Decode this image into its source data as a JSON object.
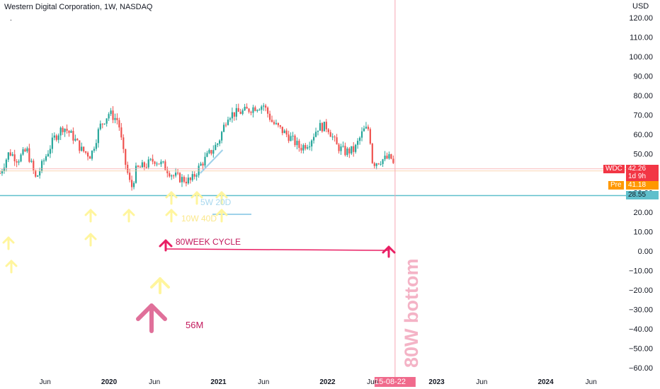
{
  "header": {
    "title": "Western Digital Corporation, 1W, NASDAQ",
    "dot": ".",
    "currency": "USD"
  },
  "badges": {
    "wdc_label": "WDC",
    "wdc_price": "42.26",
    "wdc_countdown": "1d 9h",
    "pre_label": "Pre",
    "pre_price": "41.18",
    "level_price": "28.55",
    "crosshair_date": "15-08-22"
  },
  "annotations": {
    "ma_short": "5W 20D",
    "ma_long": "10W 40D",
    "cycle": "80WEEK CYCLE",
    "monthly": "56M",
    "bottom": "80W bottom"
  },
  "colors": {
    "up": "#26a69a",
    "down": "#ef5350",
    "arrow_yellow": "#fff59d",
    "cycle_red": "#e91e63",
    "arrow_pink": "#e0709a",
    "level_teal": "#5fbfcc",
    "ma_blue": "#9fd2ea",
    "crosshair": "#f7a7b3",
    "pre": "#ff9800",
    "wdc": "#f23645"
  },
  "chart_data": {
    "type": "candlestick",
    "symbol": "WDC",
    "interval": "1W",
    "exchange": "NASDAQ",
    "y_axis": {
      "range": [
        -60,
        120
      ],
      "ticks": [
        120,
        110,
        100,
        90,
        80,
        70,
        60,
        50,
        40,
        30,
        20,
        10,
        0,
        -10,
        -20,
        -30,
        -40,
        -50,
        -60
      ],
      "tick_labels": [
        "120.00",
        "110.00",
        "100.00",
        "90.00",
        "80.00",
        "70.00",
        "60.00",
        "50.00",
        "40.00",
        "30.00",
        "20.00",
        "10.00",
        "0.00",
        "−10.00",
        "−20.00",
        "−30.00",
        "−40.00",
        "−50.00",
        "−60.00"
      ]
    },
    "x_axis": {
      "labels": [
        "Jun",
        "2020",
        "Jun",
        "2021",
        "Jun",
        "2022",
        "Jun",
        "2023",
        "Jun",
        "2024",
        "Jun"
      ],
      "dates": [
        "2019-06",
        "2020-01",
        "2020-06",
        "2021-01",
        "2021-06",
        "2022-01",
        "2022-06",
        "2023-01",
        "2023-06",
        "2024-01",
        "2024-06"
      ]
    },
    "price_path": [
      [
        "2019-01-01",
        40
      ],
      [
        "2019-02-01",
        51
      ],
      [
        "2019-03-01",
        47
      ],
      [
        "2019-04-01",
        52
      ],
      [
        "2019-05-01",
        37
      ],
      [
        "2019-06-01",
        48
      ],
      [
        "2019-07-01",
        58
      ],
      [
        "2019-08-01",
        64
      ],
      [
        "2019-09-01",
        59
      ],
      [
        "2019-10-01",
        52
      ],
      [
        "2019-11-01",
        49
      ],
      [
        "2019-12-01",
        64
      ],
      [
        "2020-01-01",
        71
      ],
      [
        "2020-02-01",
        67
      ],
      [
        "2020-02-20",
        48
      ],
      [
        "2020-03-15",
        32
      ],
      [
        "2020-04-01",
        42
      ],
      [
        "2020-05-01",
        44
      ],
      [
        "2020-06-01",
        47
      ],
      [
        "2020-07-01",
        44
      ],
      [
        "2020-08-01",
        39
      ],
      [
        "2020-09-01",
        37
      ],
      [
        "2020-10-01",
        36
      ],
      [
        "2020-11-01",
        44
      ],
      [
        "2020-12-01",
        50
      ],
      [
        "2021-01-01",
        56
      ],
      [
        "2021-02-01",
        70
      ],
      [
        "2021-03-01",
        71
      ],
      [
        "2021-04-01",
        72
      ],
      [
        "2021-05-01",
        74
      ],
      [
        "2021-06-01",
        75
      ],
      [
        "2021-07-01",
        66
      ],
      [
        "2021-08-01",
        62
      ],
      [
        "2021-09-01",
        58
      ],
      [
        "2021-10-01",
        53
      ],
      [
        "2021-11-01",
        56
      ],
      [
        "2021-12-01",
        64
      ],
      [
        "2022-01-01",
        64
      ],
      [
        "2022-02-01",
        54
      ],
      [
        "2022-03-01",
        51
      ],
      [
        "2022-04-01",
        52
      ],
      [
        "2022-05-01",
        62
      ],
      [
        "2022-05-20",
        63
      ],
      [
        "2022-06-01",
        45
      ],
      [
        "2022-07-01",
        47
      ],
      [
        "2022-08-01",
        48
      ],
      [
        "2022-08-15",
        42
      ]
    ],
    "horizontal_lines": [
      {
        "price": 28.55,
        "color": "teal"
      },
      {
        "price": 42.26,
        "color": "red"
      },
      {
        "price": 41.18,
        "color": "orange"
      }
    ],
    "last_price": 42.26,
    "premarket_price": 41.18,
    "crosshair": {
      "date": "2022-08-15"
    },
    "annotations": [
      {
        "text": "80WEEK CYCLE",
        "price": 3
      },
      {
        "text": "5W 20D",
        "price": 25
      },
      {
        "text": "10W 40D",
        "price": 16
      },
      {
        "text": "56M",
        "price": -38
      },
      {
        "text": "80W bottom",
        "vertical": true
      }
    ]
  }
}
